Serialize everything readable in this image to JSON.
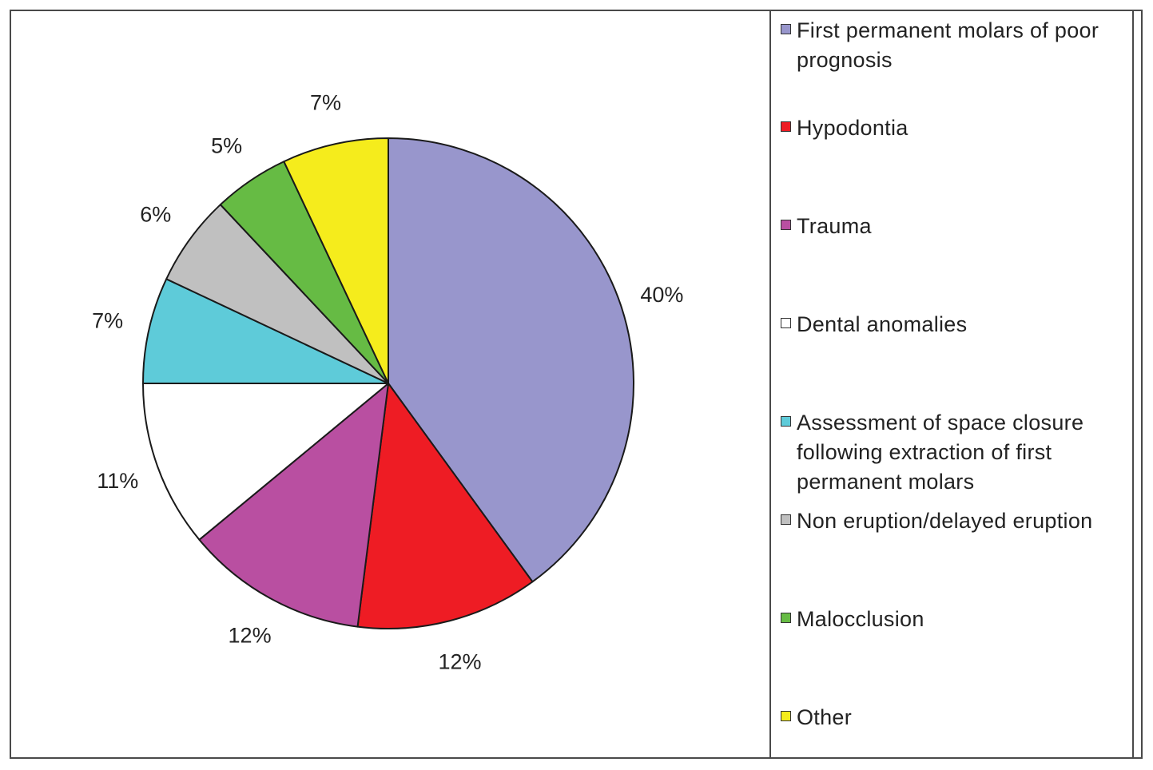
{
  "chart_data": {
    "type": "pie",
    "slices": [
      {
        "label": "First permanent molars of poor prognosis",
        "value": 40,
        "value_label": "40%",
        "color": "#9896cc"
      },
      {
        "label": "Hypodontia",
        "value": 12,
        "value_label": "12%",
        "color": "#ee1c24"
      },
      {
        "label": "Trauma",
        "value": 12,
        "value_label": "12%",
        "color": "#b94fa1"
      },
      {
        "label": "Dental anomalies",
        "value": 11,
        "value_label": "11%",
        "color": "#ffffff"
      },
      {
        "label": "Assessment of space closure following extraction of first permanent molars",
        "value": 7,
        "value_label": "7%",
        "color": "#5ecbd9"
      },
      {
        "label": "Non eruption/delayed eruption",
        "value": 6,
        "value_label": "6%",
        "color": "#c0c0c0"
      },
      {
        "label": "Malocclusion",
        "value": 5,
        "value_label": "5%",
        "color": "#66bb44"
      },
      {
        "label": "Other",
        "value": 7,
        "value_label": "7%",
        "color": "#f5ec1c"
      }
    ],
    "legend": {
      "placement": "right",
      "entries": [
        "First permanent molars of poor prognosis",
        "Hypodontia",
        "Trauma",
        "Dental anomalies",
        "Assessment of space closure following extraction of first permanent molars",
        "Non eruption/delayed eruption",
        "Malocclusion",
        "Other"
      ]
    },
    "start_angle": "12 o'clock",
    "direction": "clockwise"
  }
}
